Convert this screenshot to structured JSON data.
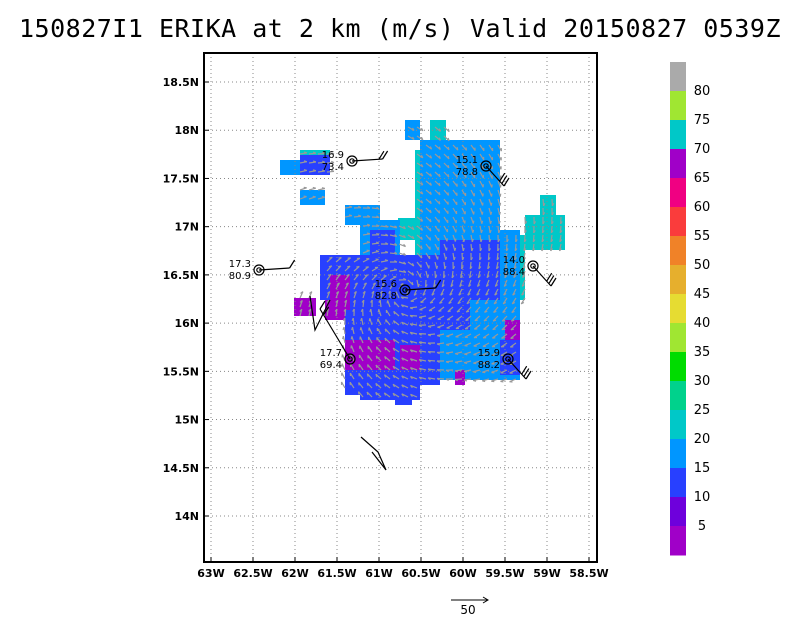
{
  "title": "150827I1 ERIKA at 2 km (m/s) Valid 20150827 0539Z",
  "map": {
    "lon_labels": [
      "63W",
      "62.5W",
      "62W",
      "61.5W",
      "61W",
      "60.5W",
      "60W",
      "59.5W",
      "59W",
      "58.5W"
    ],
    "lat_labels": [
      "18.5N",
      "18N",
      "17.5N",
      "17N",
      "16.5N",
      "16N",
      "15.5N",
      "15N",
      "14.5N",
      "14N"
    ],
    "lon_range": [
      -63.0,
      -58.5
    ],
    "lat_range": [
      13.5,
      18.75
    ],
    "grid": "dotted"
  },
  "colorbar": {
    "labels": [
      "5",
      "10",
      "15",
      "20",
      "25",
      "30",
      "35",
      "40",
      "45",
      "50",
      "55",
      "60",
      "65",
      "70",
      "75",
      "80"
    ],
    "colors": [
      "#a000c8",
      "#6e00dc",
      "#2840ff",
      "#0096ff",
      "#00c8c8",
      "#00d28c",
      "#00dc00",
      "#a0e632",
      "#e6dc32",
      "#e6af2d",
      "#f08228",
      "#fa3c3c",
      "#f00082",
      "#a000c8",
      "#00c8c8",
      "#a0e632",
      "#aaaaaa"
    ]
  },
  "stations": [
    {
      "lon": -61.25,
      "lat": 17.68,
      "label1": "16.9",
      "label2": "73.4",
      "barb": [
        1,
        1,
        0
      ]
    },
    {
      "lon": -59.55,
      "lat": 17.62,
      "label1": "15.1",
      "label2": "78.8",
      "barb": [
        1,
        1,
        1
      ]
    },
    {
      "lon": -62.35,
      "lat": 16.55,
      "label1": "17.3",
      "label2": "80.9",
      "barb": [
        1,
        0,
        0
      ]
    },
    {
      "lon": -60.55,
      "lat": 16.35,
      "label1": "15.6",
      "label2": "82.8",
      "barb": [
        1,
        0,
        0
      ]
    },
    {
      "lon": -58.95,
      "lat": 16.6,
      "label1": "14.0",
      "label2": "88.4",
      "barb": [
        1,
        1,
        1
      ]
    },
    {
      "lon": -61.25,
      "lat": 15.62,
      "label1": "17.7",
      "label2": "69.4",
      "barb": [
        1,
        1,
        0
      ]
    },
    {
      "lon": -59.3,
      "lat": 15.62,
      "label1": "15.9",
      "label2": "88.2",
      "barb": [
        1,
        1,
        1
      ]
    }
  ],
  "reference_vector": {
    "label": "50"
  }
}
